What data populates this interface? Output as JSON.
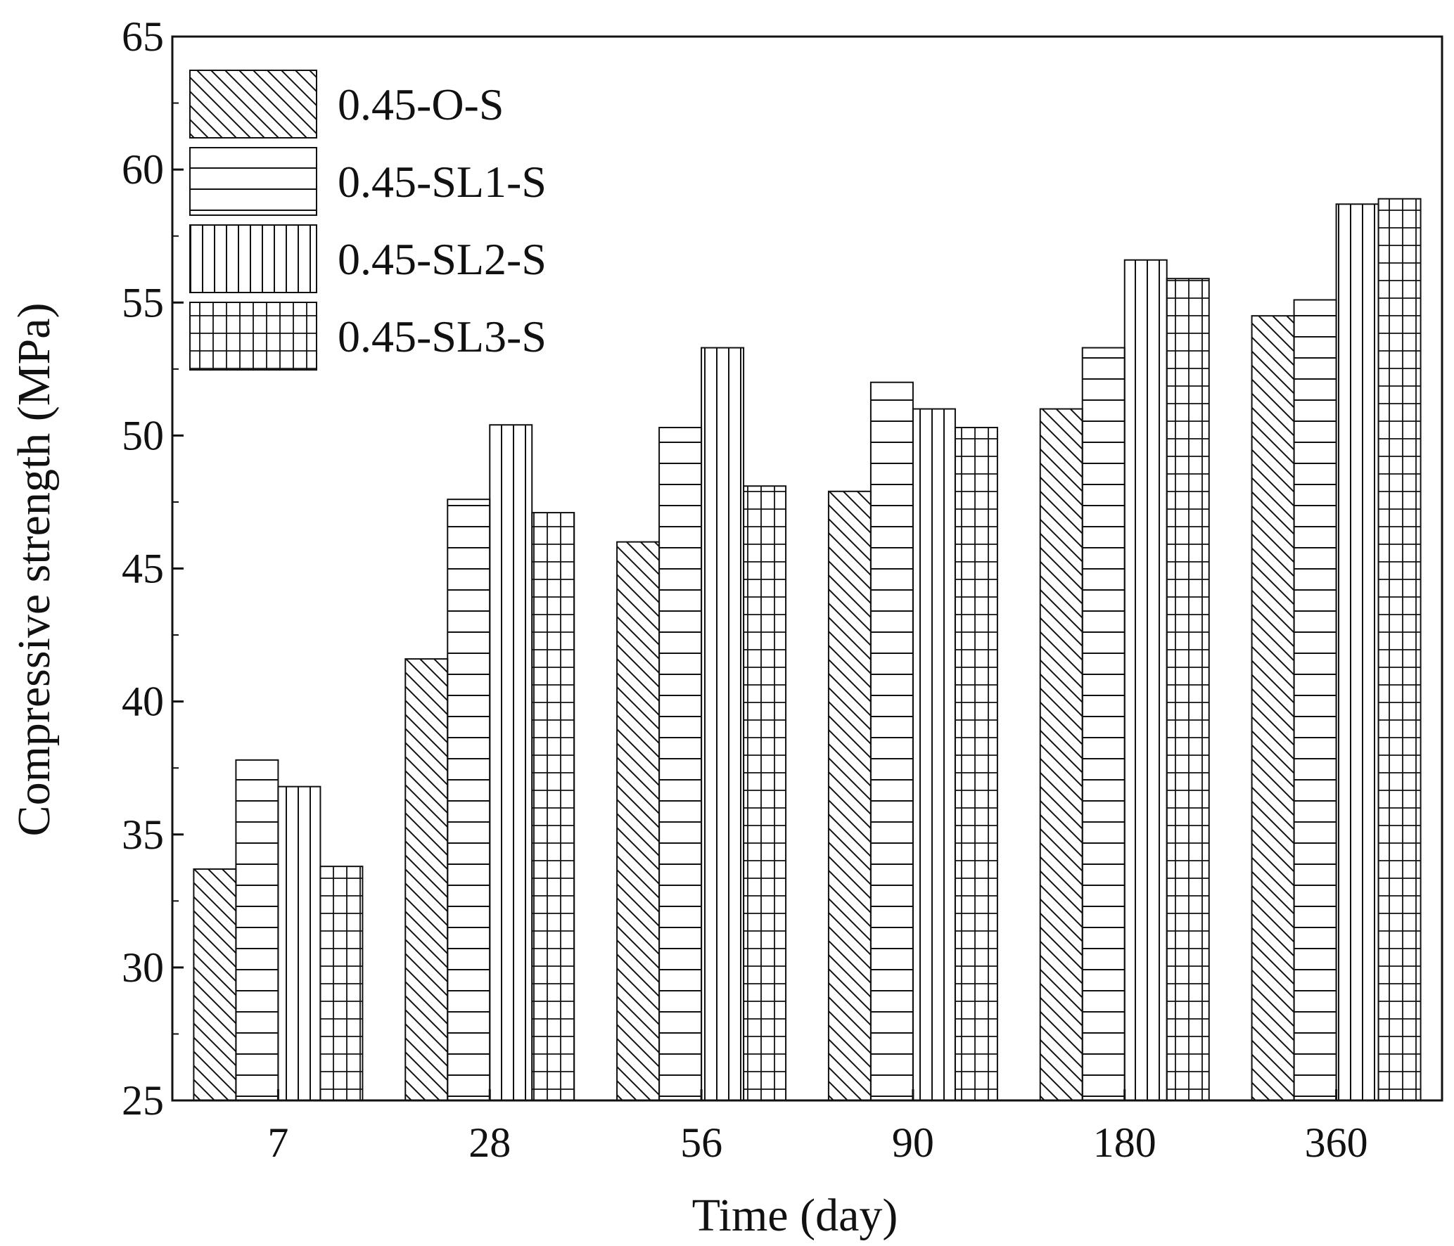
{
  "chart_data": {
    "type": "bar",
    "title": "",
    "xlabel": "Time (day)",
    "ylabel": "Compressive strength (MPa)",
    "ylim": [
      25,
      65
    ],
    "yticks": [
      "25",
      "30",
      "35",
      "40",
      "45",
      "50",
      "55",
      "60",
      "65"
    ],
    "categories": [
      "7",
      "28",
      "56",
      "90",
      "180",
      "360"
    ],
    "series": [
      {
        "name": "0.45-O-S",
        "pattern": "diagonal",
        "values": [
          33.7,
          41.6,
          46.0,
          47.9,
          51.0,
          54.5
        ]
      },
      {
        "name": "0.45-SL1-S",
        "pattern": "horizontal",
        "values": [
          37.8,
          47.6,
          50.3,
          52.0,
          53.3,
          55.1
        ]
      },
      {
        "name": "0.45-SL2-S",
        "pattern": "vertical",
        "values": [
          36.8,
          50.4,
          53.3,
          51.0,
          56.6,
          58.7
        ]
      },
      {
        "name": "0.45-SL3-S",
        "pattern": "grid",
        "values": [
          33.8,
          47.1,
          48.1,
          50.3,
          55.9,
          58.9
        ]
      }
    ],
    "legend_position": "top-left",
    "grid": false,
    "colors": {
      "stroke": "#111111",
      "fill": "#ffffff"
    }
  }
}
